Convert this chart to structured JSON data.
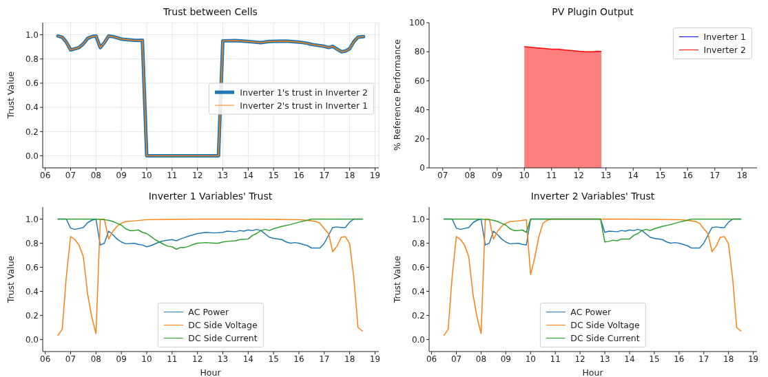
{
  "chart_data": [
    {
      "type": "line",
      "title": "Trust between Cells",
      "ylabel": "Trust Value",
      "grid": true,
      "legend": "right",
      "xlim": [
        5.9,
        19.15
      ],
      "ylim": [
        -0.1,
        1.1
      ],
      "xticks": [
        {
          "value": 6,
          "label": "06"
        },
        {
          "value": 7,
          "label": "07"
        },
        {
          "value": 8,
          "label": "08"
        },
        {
          "value": 9,
          "label": "09"
        },
        10,
        11,
        12,
        13,
        14,
        15,
        16,
        17,
        18,
        19
      ],
      "yticks": [
        {
          "value": 0,
          "label": "0.0"
        },
        {
          "value": 0.2,
          "label": "0.2"
        },
        {
          "value": 0.4,
          "label": "0.4"
        },
        {
          "value": 0.6,
          "label": "0.6"
        },
        {
          "value": 0.8,
          "label": "0.8"
        },
        {
          "value": 1,
          "label": "1.0"
        }
      ],
      "x": [
        6.5,
        6.67,
        6.83,
        7.0,
        7.17,
        7.33,
        7.5,
        7.67,
        7.83,
        8.0,
        8.17,
        8.33,
        8.5,
        8.67,
        8.83,
        9.0,
        9.17,
        9.33,
        9.5,
        9.67,
        9.83,
        10.0,
        11.0,
        12.0,
        12.83,
        13.0,
        13.5,
        14.0,
        14.5,
        14.83,
        15.5,
        16.0,
        16.33,
        16.5,
        17.0,
        17.17,
        17.33,
        17.67,
        17.83,
        18.0,
        18.17,
        18.33,
        18.55
      ],
      "series": [
        {
          "name": "Inverter 1's trust in Inverter 2",
          "color": "#1f77b4",
          "values": [
            0.99,
            0.98,
            0.94,
            0.875,
            0.885,
            0.895,
            0.925,
            0.97,
            0.985,
            0.99,
            0.895,
            0.935,
            0.99,
            0.985,
            0.975,
            0.965,
            0.96,
            0.958,
            0.955,
            0.953,
            0.955,
            0,
            0,
            0,
            0,
            0.95,
            0.952,
            0.945,
            0.935,
            0.945,
            0.948,
            0.94,
            0.93,
            0.92,
            0.905,
            0.895,
            0.905,
            0.86,
            0.865,
            0.885,
            0.945,
            0.98,
            0.985
          ]
        },
        {
          "name": "Inverter 2's trust in Inverter 1",
          "color": "#ff7f0e",
          "values": [
            0.99,
            0.98,
            0.94,
            0.875,
            0.885,
            0.895,
            0.925,
            0.97,
            0.985,
            0.99,
            0.895,
            0.935,
            0.99,
            0.985,
            0.975,
            0.965,
            0.96,
            0.958,
            0.955,
            0.953,
            0.955,
            0,
            0,
            0,
            0,
            0.95,
            0.952,
            0.945,
            0.935,
            0.945,
            0.948,
            0.94,
            0.93,
            0.92,
            0.905,
            0.895,
            0.905,
            0.86,
            0.865,
            0.885,
            0.945,
            0.98,
            0.985
          ]
        }
      ]
    },
    {
      "type": "area",
      "title": "PV Plugin Output",
      "ylabel": "% Reference Performance",
      "legend": "top right",
      "xlim": [
        6.5,
        18.55
      ],
      "ylim": [
        0,
        100
      ],
      "xticks": [
        {
          "value": 7,
          "label": "07"
        },
        {
          "value": 8,
          "label": "08"
        },
        {
          "value": 9,
          "label": "09"
        },
        10,
        11,
        12,
        13,
        14,
        15,
        16,
        17,
        18
      ],
      "yticks": [
        0,
        20,
        40,
        60,
        80,
        100
      ],
      "x": [
        10.0,
        10.25,
        10.5,
        10.75,
        11.0,
        11.25,
        11.5,
        11.75,
        12.0,
        12.25,
        12.5,
        12.67,
        12.83
      ],
      "series": [
        {
          "name": "Inverter 1",
          "color": "#0000ff",
          "values": [
            null,
            null,
            null,
            null,
            null,
            null,
            null,
            null,
            null,
            null,
            null,
            null,
            null
          ]
        },
        {
          "name": "Inverter 2",
          "color": "#ff0000",
          "values": [
            83.5,
            83,
            82.6,
            82.2,
            81.8,
            81.7,
            81.2,
            80.8,
            80.3,
            80,
            80,
            80.3,
            80.2
          ]
        }
      ]
    },
    {
      "type": "line",
      "title": "Inverter 1 Variables' Trust",
      "xlabel": "Hour",
      "ylabel": "Trust Value",
      "legend": "bottom",
      "xlim": [
        5.9,
        19.15
      ],
      "ylim": [
        -0.1,
        1.1
      ],
      "xticks": [
        {
          "value": 6,
          "label": "06"
        },
        {
          "value": 7,
          "label": "07"
        },
        {
          "value": 8,
          "label": "08"
        },
        {
          "value": 9,
          "label": "09"
        },
        10,
        11,
        12,
        13,
        14,
        15,
        16,
        17,
        18,
        19
      ],
      "yticks": [
        {
          "value": 0,
          "label": "0.0"
        },
        {
          "value": 0.2,
          "label": "0.2"
        },
        {
          "value": 0.4,
          "label": "0.4"
        },
        {
          "value": 0.6,
          "label": "0.6"
        },
        {
          "value": 0.8,
          "label": "0.8"
        },
        {
          "value": 1,
          "label": "1.0"
        }
      ],
      "series": [
        {
          "name": "AC Power",
          "color": "#1f77b4",
          "x": [
            6.5,
            6.83,
            7.0,
            7.17,
            7.5,
            7.67,
            7.83,
            8.0,
            8.17,
            8.33,
            8.5,
            8.67,
            8.83,
            9.0,
            9.17,
            9.5,
            9.67,
            9.83,
            10.0,
            10.17,
            10.5,
            10.67,
            11.0,
            11.17,
            11.33,
            11.67,
            12.0,
            12.33,
            12.67,
            13.0,
            13.17,
            13.5,
            13.67,
            13.83,
            14.0,
            14.17,
            14.33,
            14.5,
            14.83,
            15.0,
            15.33,
            15.5,
            15.67,
            15.83,
            16.0,
            16.33,
            16.5,
            16.83,
            17.0,
            17.33,
            17.5,
            17.67,
            17.83,
            18.0,
            18.17,
            18.5
          ],
          "values": [
            1,
            1,
            0.925,
            0.915,
            0.93,
            0.97,
            0.99,
            1,
            0.785,
            0.8,
            0.9,
            0.87,
            0.835,
            0.81,
            0.795,
            0.8,
            0.79,
            0.785,
            0.77,
            0.78,
            0.81,
            0.82,
            0.83,
            0.82,
            0.835,
            0.86,
            0.88,
            0.89,
            0.885,
            0.89,
            0.9,
            0.895,
            0.905,
            0.9,
            0.91,
            0.905,
            0.915,
            0.905,
            0.85,
            0.84,
            0.83,
            0.81,
            0.8,
            0.805,
            0.8,
            0.78,
            0.76,
            0.76,
            0.8,
            0.93,
            0.935,
            0.93,
            0.93,
            0.975,
            1,
            1
          ]
        },
        {
          "name": "DC Side Voltage",
          "color": "#ff7f0e",
          "x": [
            6.5,
            6.67,
            6.83,
            7.0,
            7.17,
            7.33,
            7.5,
            7.67,
            7.83,
            8.0,
            8.17,
            8.33,
            8.5,
            8.67,
            8.83,
            9.0,
            9.17,
            9.5,
            10.0,
            11.0,
            12.0,
            14.0,
            15.0,
            16.0,
            16.33,
            16.67,
            16.83,
            17.0,
            17.17,
            17.33,
            17.5,
            17.67,
            17.83,
            18.0,
            18.17,
            18.33,
            18.5
          ],
          "values": [
            0.035,
            0.085,
            0.52,
            0.855,
            0.83,
            0.785,
            0.69,
            0.38,
            0.19,
            0.05,
            1,
            1,
            0.835,
            0.9,
            0.94,
            0.965,
            0.98,
            0.985,
            0.995,
            0.998,
            1,
            1,
            0.998,
            0.995,
            0.99,
            0.98,
            0.965,
            0.92,
            0.88,
            0.73,
            0.775,
            0.85,
            0.855,
            0.795,
            0.5,
            0.1,
            0.07
          ]
        },
        {
          "name": "DC Side Current",
          "color": "#2ca02c",
          "x": [
            6.5,
            8.0,
            8.33,
            8.5,
            8.67,
            8.83,
            9.0,
            9.17,
            9.33,
            9.5,
            9.67,
            9.83,
            10.0,
            10.17,
            10.33,
            10.5,
            10.67,
            10.83,
            11.0,
            11.17,
            11.33,
            11.5,
            11.67,
            11.83,
            12.0,
            12.33,
            12.67,
            12.83,
            13.0,
            13.17,
            13.5,
            13.67,
            14.0,
            14.17,
            14.33,
            14.5,
            14.67,
            14.83,
            15.0,
            15.33,
            15.67,
            16.0,
            16.33,
            16.5,
            18.5
          ],
          "values": [
            1,
            1,
            0.995,
            0.99,
            0.98,
            0.965,
            0.95,
            0.92,
            0.905,
            0.905,
            0.91,
            0.89,
            0.88,
            0.855,
            0.83,
            0.81,
            0.79,
            0.775,
            0.77,
            0.75,
            0.765,
            0.765,
            0.775,
            0.79,
            0.8,
            0.805,
            0.8,
            0.8,
            0.81,
            0.815,
            0.82,
            0.83,
            0.835,
            0.865,
            0.88,
            0.905,
            0.915,
            0.905,
            0.92,
            0.94,
            0.955,
            0.975,
            0.99,
            1,
            1
          ]
        }
      ]
    },
    {
      "type": "line",
      "title": "Inverter 2 Variables' Trust",
      "xlabel": "Hour",
      "ylabel": "Trust Value",
      "legend": "bottom",
      "xlim": [
        5.9,
        19.15
      ],
      "ylim": [
        -0.1,
        1.1
      ],
      "xticks": [
        {
          "value": 6,
          "label": "06"
        },
        {
          "value": 7,
          "label": "07"
        },
        {
          "value": 8,
          "label": "08"
        },
        {
          "value": 9,
          "label": "09"
        },
        10,
        11,
        12,
        13,
        14,
        15,
        16,
        17,
        18,
        19
      ],
      "yticks": [
        {
          "value": 0,
          "label": "0.0"
        },
        {
          "value": 0.2,
          "label": "0.2"
        },
        {
          "value": 0.4,
          "label": "0.4"
        },
        {
          "value": 0.6,
          "label": "0.6"
        },
        {
          "value": 0.8,
          "label": "0.8"
        },
        {
          "value": 1,
          "label": "1.0"
        }
      ],
      "series": [
        {
          "name": "AC Power",
          "color": "#1f77b4",
          "x": [
            6.5,
            6.83,
            7.0,
            7.17,
            7.5,
            7.67,
            7.83,
            8.0,
            8.17,
            8.33,
            8.5,
            8.67,
            8.83,
            9.0,
            9.17,
            9.5,
            9.67,
            9.83,
            10.0,
            12.83,
            13.0,
            13.17,
            13.5,
            13.67,
            13.83,
            14.0,
            14.17,
            14.33,
            14.5,
            14.83,
            15.0,
            15.33,
            15.5,
            15.67,
            15.83,
            16.0,
            16.33,
            16.5,
            16.83,
            17.0,
            17.33,
            17.5,
            17.67,
            17.83,
            18.0,
            18.17,
            18.5
          ],
          "values": [
            1,
            1,
            0.925,
            0.915,
            0.93,
            0.97,
            0.99,
            1,
            0.785,
            0.8,
            0.9,
            0.87,
            0.835,
            0.81,
            0.795,
            0.8,
            0.79,
            0.785,
            1,
            1,
            0.89,
            0.9,
            0.895,
            0.905,
            0.9,
            0.91,
            0.905,
            0.915,
            0.905,
            0.85,
            0.84,
            0.83,
            0.81,
            0.8,
            0.805,
            0.8,
            0.78,
            0.76,
            0.76,
            0.8,
            0.93,
            0.935,
            0.93,
            0.93,
            0.975,
            1,
            1
          ]
        },
        {
          "name": "DC Side Voltage",
          "color": "#ff7f0e",
          "x": [
            6.5,
            6.67,
            6.83,
            7.0,
            7.17,
            7.33,
            7.5,
            7.67,
            7.83,
            8.0,
            8.17,
            8.33,
            8.5,
            8.67,
            8.83,
            9.0,
            9.17,
            9.5,
            9.83,
            10.0,
            10.17,
            10.33,
            10.5,
            10.67,
            10.83,
            12.0,
            14.0,
            15.0,
            16.0,
            16.33,
            16.67,
            16.83,
            17.0,
            17.17,
            17.33,
            17.5,
            17.67,
            17.83,
            18.0,
            18.17,
            18.33,
            18.5
          ],
          "values": [
            0.035,
            0.085,
            0.52,
            0.855,
            0.83,
            0.785,
            0.69,
            0.38,
            0.19,
            0.05,
            1,
            1,
            0.835,
            0.9,
            0.94,
            0.965,
            0.98,
            0.985,
            0.995,
            0.54,
            0.68,
            0.85,
            0.965,
            0.99,
            1,
            1,
            1,
            0.998,
            0.995,
            0.99,
            0.98,
            0.965,
            0.92,
            0.88,
            0.73,
            0.775,
            0.85,
            0.855,
            0.795,
            0.5,
            0.1,
            0.07
          ]
        },
        {
          "name": "DC Side Current",
          "color": "#2ca02c",
          "x": [
            6.5,
            8.0,
            8.33,
            8.5,
            8.67,
            8.83,
            9.0,
            9.17,
            9.33,
            9.5,
            9.67,
            9.83,
            10.0,
            12.83,
            13.0,
            13.17,
            13.33,
            13.5,
            13.67,
            14.0,
            14.17,
            14.33,
            14.5,
            14.67,
            14.83,
            15.0,
            15.33,
            15.67,
            16.0,
            16.33,
            16.5,
            18.5
          ],
          "values": [
            1,
            1,
            0.995,
            0.99,
            0.98,
            0.965,
            0.95,
            0.92,
            0.905,
            0.905,
            0.91,
            0.89,
            1,
            1,
            0.81,
            0.815,
            0.825,
            0.82,
            0.835,
            0.835,
            0.865,
            0.88,
            0.905,
            0.915,
            0.905,
            0.92,
            0.94,
            0.955,
            0.975,
            0.99,
            1,
            1
          ]
        }
      ]
    }
  ]
}
